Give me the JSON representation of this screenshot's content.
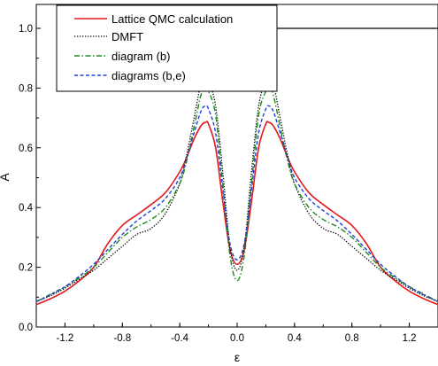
{
  "chart_data": {
    "type": "line",
    "xlabel": "ε",
    "ylabel": "A",
    "xlim": [
      -1.4,
      1.4
    ],
    "ylim": [
      0.0,
      1.08
    ],
    "x_ticks": [
      -1.2,
      -0.8,
      -0.4,
      0.0,
      0.4,
      0.8,
      1.2
    ],
    "x_tick_labels": [
      "-1.2",
      "-0.8",
      "-0.4",
      "0.0",
      "0.4",
      "0.8",
      "1.2"
    ],
    "y_ticks": [
      0.0,
      0.2,
      0.4,
      0.6,
      0.8,
      1.0
    ],
    "y_tick_labels": [
      "0.0",
      "0.2",
      "0.4",
      "0.6",
      "0.8",
      "1.0"
    ],
    "grid": false,
    "legend_placement": "top-left",
    "series": [
      {
        "name": "Lattice QMC calculation",
        "color": "#e41a1c",
        "style": "solid",
        "x": [
          0,
          0.05,
          0.1,
          0.15,
          0.2,
          0.22,
          0.25,
          0.3,
          0.35,
          0.4,
          0.5,
          0.6,
          0.7,
          0.8,
          0.9,
          1.0,
          1.1,
          1.2,
          1.3,
          1.4
        ],
        "y": [
          0.21,
          0.26,
          0.42,
          0.6,
          0.68,
          0.685,
          0.675,
          0.63,
          0.57,
          0.52,
          0.45,
          0.41,
          0.375,
          0.34,
          0.28,
          0.2,
          0.155,
          0.12,
          0.095,
          0.075
        ]
      },
      {
        "name": "DMFT",
        "color": "#000000",
        "style": "dotted",
        "x": [
          0,
          0.05,
          0.1,
          0.15,
          0.2,
          0.22,
          0.25,
          0.3,
          0.35,
          0.4,
          0.5,
          0.6,
          0.7,
          0.8,
          0.9,
          1.0,
          1.1,
          1.2,
          1.3,
          1.4
        ],
        "y": [
          0.19,
          0.27,
          0.52,
          0.74,
          0.825,
          0.835,
          0.82,
          0.7,
          0.58,
          0.48,
          0.38,
          0.33,
          0.31,
          0.27,
          0.23,
          0.19,
          0.16,
          0.13,
          0.105,
          0.085
        ]
      },
      {
        "name": "diagram (b)",
        "color": "#1a8a1a",
        "style": "dashdot",
        "x": [
          0,
          0.05,
          0.1,
          0.15,
          0.2,
          0.22,
          0.25,
          0.3,
          0.35,
          0.4,
          0.5,
          0.6,
          0.7,
          0.8,
          0.9,
          1.0,
          1.1,
          1.2,
          1.3,
          1.4
        ],
        "y": [
          0.155,
          0.24,
          0.48,
          0.71,
          0.79,
          0.8,
          0.78,
          0.67,
          0.56,
          0.48,
          0.4,
          0.36,
          0.335,
          0.3,
          0.25,
          0.2,
          0.165,
          0.135,
          0.11,
          0.085
        ]
      },
      {
        "name": "diagrams (b,e)",
        "color": "#1f3fd6",
        "style": "dashed",
        "x": [
          0,
          0.05,
          0.1,
          0.15,
          0.2,
          0.22,
          0.25,
          0.3,
          0.35,
          0.4,
          0.5,
          0.6,
          0.7,
          0.8,
          0.9,
          1.0,
          1.1,
          1.2,
          1.3,
          1.4
        ],
        "y": [
          0.225,
          0.28,
          0.46,
          0.65,
          0.73,
          0.74,
          0.725,
          0.65,
          0.57,
          0.5,
          0.43,
          0.39,
          0.355,
          0.31,
          0.26,
          0.21,
          0.17,
          0.135,
          0.108,
          0.085
        ]
      }
    ],
    "reference_line": {
      "y": 1.0
    }
  }
}
